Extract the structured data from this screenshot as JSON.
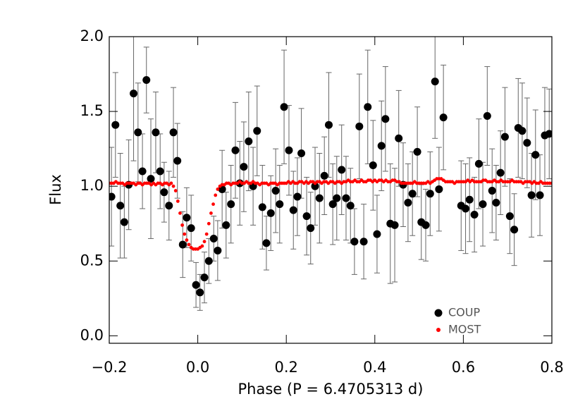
{
  "chart_data": {
    "type": "scatter",
    "xlabel": "Phase (P = 6.4705313 d)",
    "ylabel": "Flux",
    "xlim": [
      -0.2,
      0.8
    ],
    "ylim": [
      -0.05,
      2.0
    ],
    "xticks": [
      {
        "value": -0.2,
        "label": "−0.2"
      },
      {
        "value": 0,
        "label": "0.0"
      },
      0.2,
      0.4,
      0.6,
      0.8
    ],
    "yticks": [
      {
        "value": 0,
        "label": "0.0"
      },
      0.5,
      {
        "value": 1,
        "label": "1.0"
      },
      1.5,
      {
        "value": 2,
        "label": "2.0"
      }
    ],
    "legend": "lower right",
    "series": [
      {
        "name": "COUP",
        "color": "#000000",
        "x": [
          -0.195,
          -0.186,
          -0.175,
          -0.166,
          -0.156,
          -0.145,
          -0.135,
          -0.125,
          -0.116,
          -0.106,
          -0.095,
          -0.085,
          -0.076,
          -0.065,
          -0.055,
          -0.046,
          -0.034,
          -0.025,
          -0.015,
          -0.004,
          0.005,
          0.015,
          0.025,
          0.036,
          0.045,
          0.055,
          0.064,
          0.075,
          0.085,
          0.095,
          0.104,
          0.115,
          0.125,
          0.134,
          0.146,
          0.155,
          0.165,
          0.176,
          0.185,
          0.195,
          0.206,
          0.216,
          0.225,
          0.234,
          0.246,
          0.255,
          0.265,
          0.275,
          0.286,
          0.296,
          0.305,
          0.314,
          0.325,
          0.335,
          0.345,
          0.354,
          0.365,
          0.375,
          0.384,
          0.396,
          0.405,
          0.415,
          0.424,
          0.435,
          0.445,
          0.454,
          0.464,
          0.475,
          0.485,
          0.496,
          0.505,
          0.515,
          0.525,
          0.536,
          0.545,
          0.555,
          0.595,
          0.605,
          0.614,
          0.625,
          0.635,
          0.644,
          0.654,
          0.665,
          0.674,
          0.684,
          0.694,
          0.705,
          0.715,
          0.724,
          0.733,
          0.744,
          0.754,
          0.763,
          0.773,
          0.784,
          0.794
        ],
        "values": [
          0.93,
          1.41,
          0.87,
          0.76,
          1.01,
          1.62,
          1.36,
          1.1,
          1.71,
          1.05,
          1.36,
          1.1,
          0.96,
          0.87,
          1.36,
          1.17,
          0.61,
          0.79,
          0.72,
          0.34,
          0.29,
          0.39,
          0.5,
          0.65,
          0.57,
          0.98,
          0.74,
          0.88,
          1.24,
          1.02,
          1.13,
          1.3,
          1.0,
          1.37,
          0.86,
          0.62,
          0.82,
          0.97,
          0.88,
          1.53,
          1.24,
          0.84,
          0.93,
          1.22,
          0.8,
          0.72,
          1.0,
          0.92,
          1.07,
          1.41,
          0.88,
          0.92,
          1.11,
          0.92,
          0.87,
          0.63,
          1.4,
          0.63,
          1.53,
          1.14,
          0.68,
          1.27,
          1.45,
          0.75,
          0.74,
          1.32,
          1.01,
          0.89,
          0.95,
          1.23,
          0.76,
          0.74,
          0.95,
          1.7,
          0.98,
          1.46,
          0.87,
          0.85,
          0.91,
          0.81,
          1.15,
          0.88,
          1.47,
          0.97,
          0.89,
          1.09,
          1.33,
          0.8,
          0.71,
          1.39,
          1.37,
          1.29,
          0.94,
          1.21,
          0.94,
          1.34,
          1.35
        ],
        "errors": [
          0.33,
          0.35,
          0.35,
          0.24,
          0.3,
          0.45,
          0.33,
          0.25,
          0.22,
          0.4,
          0.27,
          0.25,
          0.2,
          0.23,
          0.3,
          0.25,
          0.22,
          0.2,
          0.22,
          0.15,
          0.12,
          0.17,
          0.15,
          0.15,
          0.2,
          0.26,
          0.22,
          0.26,
          0.32,
          0.28,
          0.3,
          0.33,
          0.26,
          0.3,
          0.28,
          0.18,
          0.25,
          0.28,
          0.26,
          0.38,
          0.3,
          0.26,
          0.26,
          0.3,
          0.26,
          0.24,
          0.26,
          0.3,
          0.26,
          0.35,
          0.27,
          0.28,
          0.3,
          0.28,
          0.25,
          0.22,
          0.35,
          0.25,
          0.38,
          0.3,
          0.26,
          0.3,
          0.35,
          0.4,
          0.38,
          0.32,
          0.28,
          0.26,
          0.28,
          0.3,
          0.25,
          0.24,
          0.28,
          0.38,
          0.28,
          0.35,
          0.3,
          0.3,
          0.28,
          0.25,
          0.3,
          0.28,
          0.33,
          0.28,
          0.25,
          0.28,
          0.33,
          0.25,
          0.24,
          0.33,
          0.32,
          0.3,
          0.28,
          0.3,
          0.27,
          0.32,
          0.3
        ]
      },
      {
        "name": "MOST",
        "color": "#ff0000",
        "x": [
          -0.2,
          -0.195,
          -0.19,
          -0.185,
          -0.18,
          -0.175,
          -0.17,
          -0.165,
          -0.16,
          -0.155,
          -0.15,
          -0.145,
          -0.14,
          -0.135,
          -0.13,
          -0.125,
          -0.12,
          -0.115,
          -0.11,
          -0.105,
          -0.1,
          -0.095,
          -0.09,
          -0.085,
          -0.08,
          -0.075,
          -0.07,
          -0.065,
          -0.06,
          -0.055,
          -0.05,
          -0.045,
          -0.04,
          -0.035,
          -0.03,
          -0.025,
          -0.02,
          -0.015,
          -0.01,
          -0.005,
          0,
          0.005,
          0.01,
          0.015,
          0.02,
          0.025,
          0.03,
          0.035,
          0.04,
          0.045,
          0.05,
          0.055,
          0.06,
          0.065,
          0.07,
          0.075,
          0.08,
          0.085,
          0.09,
          0.095,
          0.1,
          0.105,
          0.11,
          0.115,
          0.12,
          0.125,
          0.13,
          0.135,
          0.14,
          0.145,
          0.15,
          0.155,
          0.16,
          0.165,
          0.17,
          0.175,
          0.18,
          0.185,
          0.19,
          0.195,
          0.2,
          0.205,
          0.21,
          0.215,
          0.22,
          0.225,
          0.23,
          0.235,
          0.24,
          0.245,
          0.25,
          0.255,
          0.26,
          0.265,
          0.27,
          0.275,
          0.28,
          0.285,
          0.29,
          0.295,
          0.3,
          0.305,
          0.31,
          0.315,
          0.32,
          0.325,
          0.33,
          0.335,
          0.34,
          0.345,
          0.35,
          0.355,
          0.36,
          0.365,
          0.37,
          0.375,
          0.38,
          0.385,
          0.39,
          0.395,
          0.4,
          0.405,
          0.41,
          0.415,
          0.42,
          0.425,
          0.43,
          0.435,
          0.44,
          0.445,
          0.45,
          0.455,
          0.46,
          0.465,
          0.47,
          0.475,
          0.48,
          0.485,
          0.49,
          0.495,
          0.5,
          0.505,
          0.51,
          0.515,
          0.52,
          0.525,
          0.53,
          0.535,
          0.54,
          0.545,
          0.55,
          0.555,
          0.56,
          0.565,
          0.57,
          0.575,
          0.58,
          0.585,
          0.59,
          0.595,
          0.6,
          0.605,
          0.61,
          0.615,
          0.62,
          0.625,
          0.63,
          0.635,
          0.64,
          0.645,
          0.65,
          0.655,
          0.66,
          0.665,
          0.67,
          0.675,
          0.68,
          0.685,
          0.69,
          0.695,
          0.7,
          0.705,
          0.71,
          0.715,
          0.72,
          0.725,
          0.73,
          0.735,
          0.74,
          0.745,
          0.75,
          0.755,
          0.76,
          0.765,
          0.77,
          0.775,
          0.78,
          0.785,
          0.79,
          0.795,
          0.8
        ],
        "values": [
          1.02,
          1.02,
          1.02,
          1.03,
          1.02,
          1.02,
          1.02,
          1.01,
          1.02,
          1.02,
          1.02,
          1.02,
          1.01,
          1.02,
          1.02,
          1.01,
          1.02,
          1.02,
          1.02,
          1.01,
          1.02,
          1.01,
          1.02,
          1.02,
          1.01,
          1.02,
          1.02,
          1.01,
          1.02,
          1.0,
          0.97,
          0.9,
          0.82,
          0.74,
          0.68,
          0.64,
          0.61,
          0.59,
          0.58,
          0.58,
          0.58,
          0.59,
          0.6,
          0.63,
          0.68,
          0.75,
          0.82,
          0.88,
          0.94,
          0.98,
          1.0,
          1.01,
          1.01,
          1.02,
          1.02,
          1.01,
          1.02,
          1.02,
          1.02,
          1.03,
          1.02,
          1.02,
          1.03,
          1.02,
          1.02,
          1.03,
          1.02,
          1.02,
          1.01,
          1.02,
          1.02,
          1.02,
          1.01,
          1.02,
          1.02,
          1.02,
          1.01,
          1.02,
          1.02,
          1.02,
          1.02,
          1.03,
          1.02,
          1.03,
          1.02,
          1.02,
          1.03,
          1.03,
          1.02,
          1.03,
          1.02,
          1.03,
          1.03,
          1.02,
          1.03,
          1.03,
          1.02,
          1.03,
          1.03,
          1.02,
          1.03,
          1.03,
          1.02,
          1.03,
          1.03,
          1.02,
          1.03,
          1.03,
          1.04,
          1.03,
          1.03,
          1.04,
          1.03,
          1.03,
          1.04,
          1.03,
          1.03,
          1.04,
          1.04,
          1.03,
          1.04,
          1.03,
          1.04,
          1.04,
          1.03,
          1.04,
          1.03,
          1.03,
          1.04,
          1.04,
          1.03,
          1.03,
          1.02,
          1.02,
          1.02,
          1.02,
          1.02,
          1.02,
          1.03,
          1.02,
          1.02,
          1.02,
          1.02,
          1.02,
          1.03,
          1.02,
          1.03,
          1.04,
          1.05,
          1.05,
          1.05,
          1.04,
          1.03,
          1.03,
          1.03,
          1.03,
          1.02,
          1.03,
          1.03,
          1.03,
          1.03,
          1.03,
          1.04,
          1.03,
          1.04,
          1.03,
          1.03,
          1.03,
          1.03,
          1.04,
          1.04,
          1.03,
          1.03,
          1.03,
          1.04,
          1.03,
          1.03,
          1.04,
          1.03,
          1.03,
          1.03,
          1.03,
          1.04,
          1.03,
          1.03,
          1.03,
          1.03,
          1.02,
          1.03,
          1.03,
          1.03,
          1.02,
          1.03,
          1.02,
          1.02,
          1.03,
          1.02,
          1.02,
          1.02,
          1.02,
          1.02
        ]
      }
    ]
  }
}
